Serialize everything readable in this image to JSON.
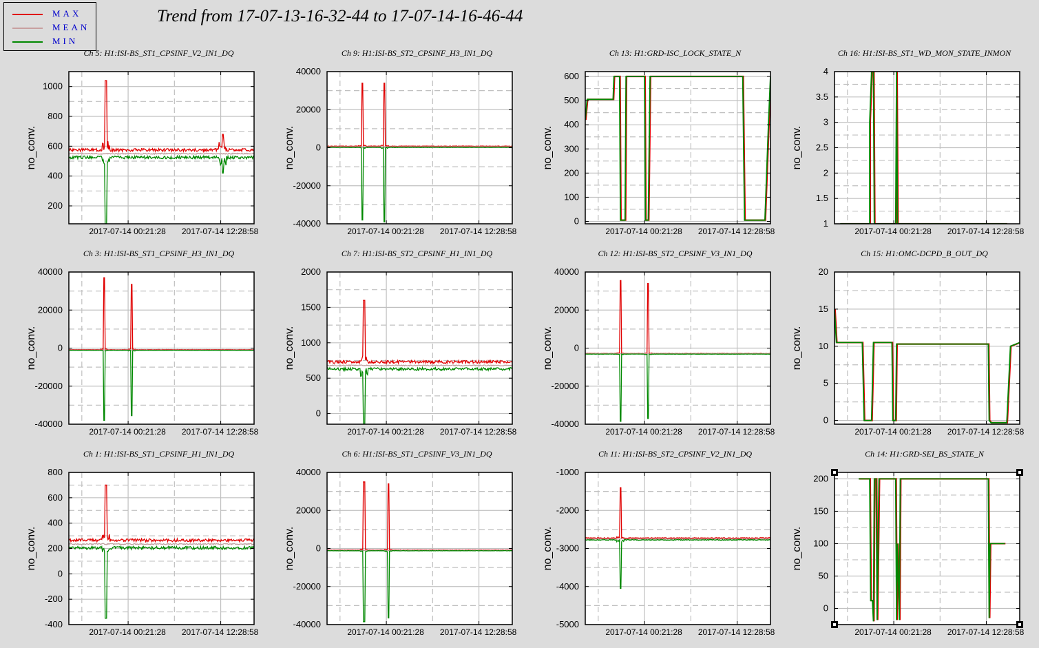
{
  "title": "Trend from 17-07-13-16-32-44 to 17-07-14-16-46-44",
  "legend": [
    {
      "label": "MAX",
      "color": "#e00000"
    },
    {
      "label": "MEAN",
      "color": "#c8a0a0"
    },
    {
      "label": "MIN",
      "color": "#008800"
    }
  ],
  "colors": {
    "max": "#e00000",
    "mean": "#c0a0a0",
    "min": "#008800",
    "grid": "#c0c0c0"
  },
  "chart_data": [
    {
      "type": "line",
      "title": "Ch 5: H1:ISI-BS_ST1_CPSINF_V2_IN1_DQ",
      "ylabel": "no_conv.",
      "ylim": [
        80,
        1100
      ],
      "yticks": [
        200,
        400,
        600,
        800,
        1000
      ],
      "xticks": [
        "2017-07-14 00:21:28",
        "2017-07-14 12:28:58"
      ],
      "kind": "noise",
      "base": 550,
      "band": 25,
      "spikes": [
        [
          0.2,
          1040,
          80
        ],
        [
          0.83,
          680,
          420
        ]
      ]
    },
    {
      "type": "line",
      "title": "Ch 9: H1:ISI-BS_ST2_CPSINF_H3_IN1_DQ",
      "ylabel": "no_conv.",
      "ylim": [
        -40000,
        40000
      ],
      "yticks": [
        -40000,
        -20000,
        0,
        20000,
        40000
      ],
      "xticks": [
        "2017-07-14 00:21:28",
        "2017-07-14 12:28:58"
      ],
      "kind": "noise",
      "base": 500,
      "band": 300,
      "spikes": [
        [
          0.19,
          34000,
          -38000
        ],
        [
          0.31,
          34000,
          -39000
        ]
      ]
    },
    {
      "type": "line",
      "title": "Ch 13: H1:GRD-ISC_LOCK_STATE_N",
      "ylabel": "no_conv.",
      "ylim": [
        -10,
        620
      ],
      "yticks": [
        0,
        100,
        200,
        300,
        400,
        500,
        600
      ],
      "xticks": [
        "2017-07-14 00:21:28",
        "2017-07-14 12:28:58"
      ],
      "kind": "step",
      "steps": [
        [
          0,
          420
        ],
        [
          0.01,
          505
        ],
        [
          0.15,
          505
        ],
        [
          0.155,
          600
        ],
        [
          0.185,
          600
        ],
        [
          0.19,
          5
        ],
        [
          0.215,
          5
        ],
        [
          0.22,
          600
        ],
        [
          0.32,
          600
        ],
        [
          0.325,
          5
        ],
        [
          0.34,
          5
        ],
        [
          0.35,
          600
        ],
        [
          0.85,
          600
        ],
        [
          0.86,
          5
        ],
        [
          0.97,
          5
        ],
        [
          0.99,
          420
        ],
        [
          1,
          600
        ]
      ]
    },
    {
      "type": "line",
      "title": "Ch 16: H1:ISI-BS_ST1_WD_MON_STATE_INMON",
      "ylabel": "no_conv.",
      "ylim": [
        1,
        4
      ],
      "yticks": [
        1,
        1.5,
        2,
        2.5,
        3,
        3.5,
        4
      ],
      "xticks": [
        "2017-07-14 00:21:28",
        "2017-07-14 12:28:58"
      ],
      "kind": "step",
      "steps": [
        [
          0.03,
          1
        ],
        [
          0.19,
          1
        ],
        [
          0.19,
          3
        ],
        [
          0.2,
          4
        ],
        [
          0.21,
          4
        ],
        [
          0.215,
          1
        ],
        [
          0.33,
          1
        ],
        [
          0.335,
          4
        ],
        [
          0.34,
          1
        ],
        [
          0.93,
          1
        ]
      ]
    },
    {
      "type": "line",
      "title": "Ch 3: H1:ISI-BS_ST1_CPSINF_H3_IN1_DQ",
      "ylabel": "no_conv.",
      "ylim": [
        -40000,
        40000
      ],
      "yticks": [
        -40000,
        -20000,
        0,
        20000,
        40000
      ],
      "xticks": [
        "2017-07-14 00:21:28",
        "2017-07-14 12:28:58"
      ],
      "kind": "noise",
      "base": -1000,
      "band": 200,
      "spikes": [
        [
          0.19,
          37000,
          -38000
        ],
        [
          0.34,
          33500,
          -35500
        ]
      ]
    },
    {
      "type": "line",
      "title": "Ch 7: H1:ISI-BS_ST2_CPSINF_H1_IN1_DQ",
      "ylabel": "no_conv.",
      "ylim": [
        -150,
        2000
      ],
      "yticks": [
        0,
        500,
        1000,
        1500,
        2000
      ],
      "xticks": [
        "2017-07-14 00:21:28",
        "2017-07-14 12:28:58"
      ],
      "kind": "noise",
      "base": 680,
      "band": 50,
      "spikes": [
        [
          0.2,
          1600,
          -150
        ]
      ]
    },
    {
      "type": "line",
      "title": "Ch 12: H1:ISI-BS_ST2_CPSINF_V3_IN1_DQ",
      "ylabel": "no_conv.",
      "ylim": [
        -40000,
        40000
      ],
      "yticks": [
        -40000,
        -20000,
        0,
        20000,
        40000
      ],
      "xticks": [
        "2017-07-14 00:21:28",
        "2017-07-14 12:28:58"
      ],
      "kind": "noise",
      "base": -3000,
      "band": 150,
      "spikes": [
        [
          0.19,
          35500,
          -38500
        ],
        [
          0.34,
          34000,
          -37000
        ]
      ]
    },
    {
      "type": "line",
      "title": "Ch 15: H1:OMC-DCPD_B_OUT_DQ",
      "ylabel": "no_conv.",
      "ylim": [
        -0.5,
        20
      ],
      "yticks": [
        0,
        5,
        10,
        15,
        20
      ],
      "xticks": [
        "2017-07-14 00:21:28",
        "2017-07-14 12:28:58"
      ],
      "kind": "step",
      "steps": [
        [
          0,
          15
        ],
        [
          0.01,
          10.5
        ],
        [
          0.15,
          10.5
        ],
        [
          0.16,
          0
        ],
        [
          0.2,
          0
        ],
        [
          0.21,
          10.5
        ],
        [
          0.31,
          10.5
        ],
        [
          0.315,
          0
        ],
        [
          0.33,
          0
        ],
        [
          0.335,
          10.3
        ],
        [
          0.83,
          10.3
        ],
        [
          0.835,
          0
        ],
        [
          0.845,
          -0.3
        ],
        [
          0.93,
          -0.3
        ],
        [
          0.95,
          10
        ],
        [
          1,
          10.5
        ]
      ]
    },
    {
      "type": "line",
      "title": "Ch 1: H1:ISI-BS_ST1_CPSINF_H1_IN1_DQ",
      "ylabel": "no_conv.",
      "ylim": [
        -400,
        800
      ],
      "yticks": [
        -400,
        -200,
        0,
        200,
        400,
        600,
        800
      ],
      "xticks": [
        "2017-07-14 00:21:28",
        "2017-07-14 12:28:58"
      ],
      "kind": "noise",
      "base": 235,
      "band": 30,
      "spikes": [
        [
          0.2,
          700,
          -350
        ]
      ]
    },
    {
      "type": "line",
      "title": "Ch 6: H1:ISI-BS_ST1_CPSINF_V3_IN1_DQ",
      "ylabel": "no_conv.",
      "ylim": [
        -40000,
        40000
      ],
      "yticks": [
        -40000,
        -20000,
        0,
        20000,
        40000
      ],
      "xticks": [
        "2017-07-14 00:21:28",
        "2017-07-14 12:28:58"
      ],
      "kind": "noise",
      "base": -1000,
      "band": 200,
      "spikes": [
        [
          0.2,
          35000,
          -38500
        ],
        [
          0.33,
          34000,
          -36500
        ]
      ]
    },
    {
      "type": "line",
      "title": "Ch 11: H1:ISI-BS_ST2_CPSINF_V2_IN1_DQ",
      "ylabel": "no_conv.",
      "ylim": [
        -5000,
        -1000
      ],
      "yticks": [
        -5000,
        -4000,
        -3000,
        -2000,
        -1000
      ],
      "xticks": [
        "2017-07-14 00:21:28",
        "2017-07-14 12:28:58"
      ],
      "kind": "noise",
      "base": -2750,
      "band": 25,
      "spikes": [
        [
          0.19,
          -1400,
          -4050
        ]
      ]
    },
    {
      "type": "line",
      "title": "Ch 14: H1:GRD-SEI_BS_STATE_N",
      "ylabel": "no_conv.",
      "ylim": [
        -25,
        210
      ],
      "yticks": [
        0,
        50,
        100,
        150,
        200
      ],
      "xticks": [
        "2017-07-14 00:21:28",
        "2017-07-14 12:28:58"
      ],
      "kind": "step",
      "steps": [
        [
          0.13,
          200
        ],
        [
          0.19,
          200
        ],
        [
          0.195,
          12
        ],
        [
          0.205,
          12
        ],
        [
          0.21,
          -20
        ],
        [
          0.215,
          200
        ],
        [
          0.225,
          200
        ],
        [
          0.23,
          -18
        ],
        [
          0.24,
          200
        ],
        [
          0.33,
          200
        ],
        [
          0.335,
          -18
        ],
        [
          0.34,
          100
        ],
        [
          0.35,
          -18
        ],
        [
          0.355,
          200
        ],
        [
          0.83,
          200
        ],
        [
          0.835,
          -15
        ],
        [
          0.84,
          100
        ],
        [
          0.92,
          100
        ]
      ]
    }
  ]
}
